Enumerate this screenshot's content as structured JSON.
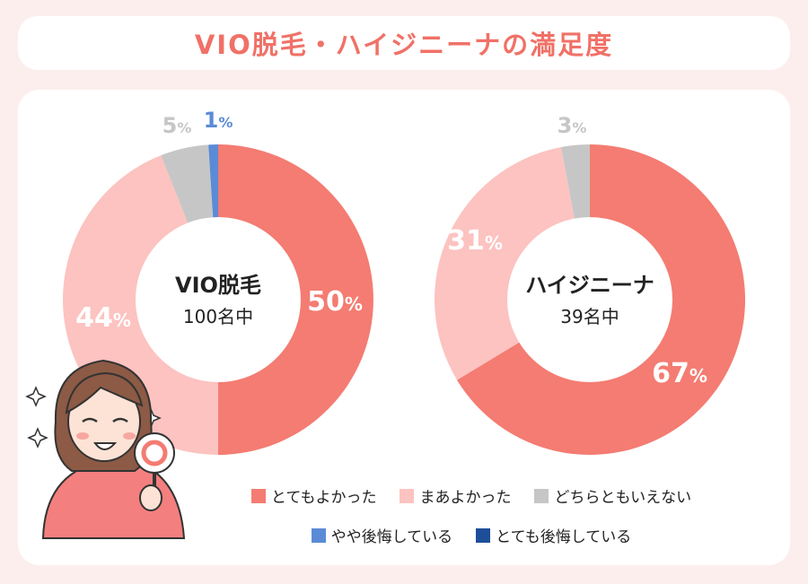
{
  "title": "VIO脱毛・ハイジニーナの満足度",
  "colors": {
    "very_satisfied": "#f47c72",
    "somewhat_satisfied": "#fcc3c0",
    "neutral": "#c6c6c6",
    "slight_regret": "#5b8bd6",
    "strong_regret": "#1f4e99"
  },
  "chart_data": [
    {
      "type": "pie",
      "donut": true,
      "center_title": "VIO脱毛",
      "center_sub": "100名中",
      "categories": [
        "とてもよかった",
        "まあよかった",
        "どちらともいえない",
        "やや後悔している",
        "とても後悔している"
      ],
      "values": [
        50,
        44,
        5,
        1,
        0
      ],
      "labels": [
        "50",
        "44",
        "5",
        "1",
        ""
      ]
    },
    {
      "type": "pie",
      "donut": true,
      "center_title": "ハイジニーナ",
      "center_sub": "39名中",
      "categories": [
        "とてもよかった",
        "まあよかった",
        "どちらともいえない",
        "やや後悔している",
        "とても後悔している"
      ],
      "values": [
        67,
        31,
        3,
        0,
        0
      ],
      "labels": [
        "67",
        "31",
        "3",
        "",
        ""
      ]
    }
  ],
  "percent_sign": "%",
  "legend": [
    {
      "label": "とてもよかった",
      "color": "#f47c72"
    },
    {
      "label": "まあよかった",
      "color": "#fcc3c0"
    },
    {
      "label": "どちらともいえない",
      "color": "#c6c6c6"
    },
    {
      "label": "やや後悔している",
      "color": "#5b8bd6"
    },
    {
      "label": "とても後悔している",
      "color": "#1f4e99"
    }
  ]
}
